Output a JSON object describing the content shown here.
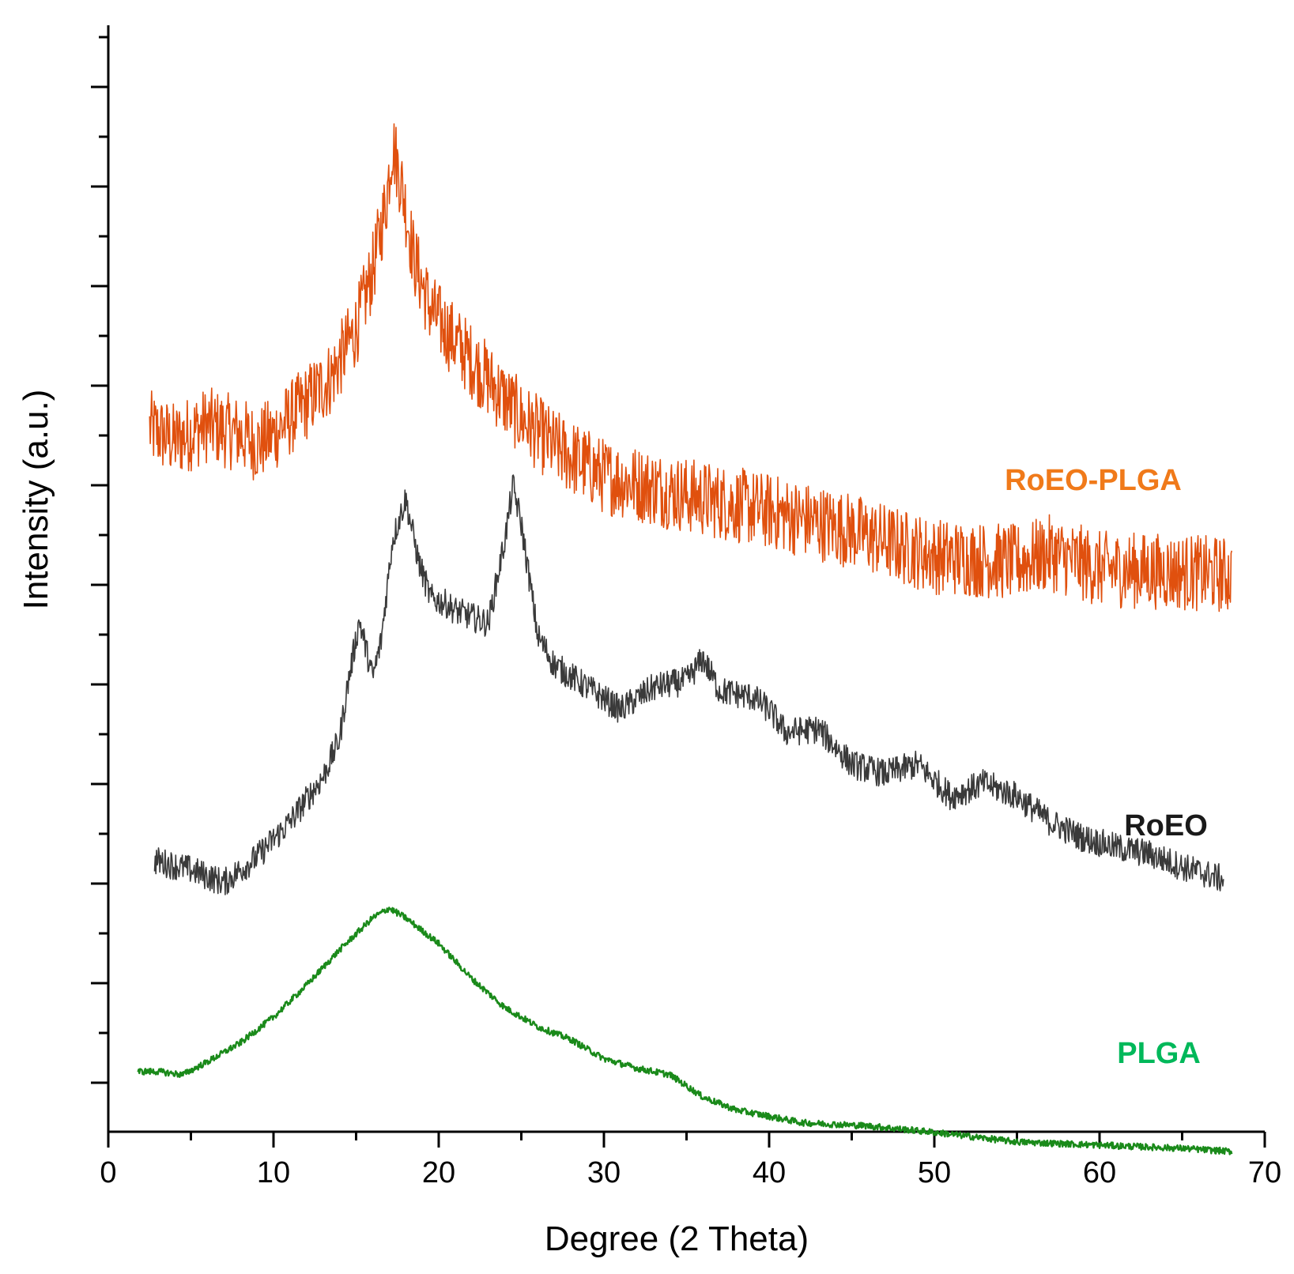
{
  "chart_data": {
    "type": "line",
    "xlabel": "Degree (2 Theta)",
    "ylabel": "Intensity (a.u.)",
    "xlim": [
      0,
      70
    ],
    "xticks": [
      0,
      10,
      20,
      30,
      40,
      50,
      60,
      70
    ],
    "yticks_labeled": false,
    "grid": false,
    "legend": "inline labels at right",
    "series": [
      {
        "name": "RoEO-PLGA",
        "color": "#e0500e",
        "label_color": "#f07a1a",
        "noise": 1.2,
        "points": [
          [
            2.5,
            6.5
          ],
          [
            4,
            6.1
          ],
          [
            6,
            6.6
          ],
          [
            8,
            6.3
          ],
          [
            9,
            6.0
          ],
          [
            10,
            6.3
          ],
          [
            12,
            7.3
          ],
          [
            13.5,
            8.1
          ],
          [
            15,
            9.6
          ],
          [
            16,
            11.4
          ],
          [
            16.8,
            13.5
          ],
          [
            17.2,
            15.4
          ],
          [
            17.8,
            14.0
          ],
          [
            18.5,
            11.8
          ],
          [
            19.5,
            10.2
          ],
          [
            21,
            9.2
          ],
          [
            23,
            8.0
          ],
          [
            25,
            6.8
          ],
          [
            27,
            5.9
          ],
          [
            30,
            5.0
          ],
          [
            35,
            4.4
          ],
          [
            40,
            3.9
          ],
          [
            45,
            3.3
          ],
          [
            48,
            2.8
          ],
          [
            50,
            2.5
          ],
          [
            55,
            2.3
          ],
          [
            57,
            2.6
          ],
          [
            60,
            2.1
          ],
          [
            65,
            2.0
          ],
          [
            68,
            1.9
          ]
        ]
      },
      {
        "name": "RoEO",
        "color": "#3a3a3a",
        "label_color": "#1a1a1a",
        "noise": 0.45,
        "points": [
          [
            2.8,
            -7.0
          ],
          [
            5,
            -7.3
          ],
          [
            7,
            -7.7
          ],
          [
            9,
            -6.9
          ],
          [
            11,
            -5.8
          ],
          [
            13,
            -4.4
          ],
          [
            14,
            -3.2
          ],
          [
            14.5,
            -1.5
          ],
          [
            15.2,
            0.5
          ],
          [
            16,
            -1.3
          ],
          [
            16.5,
            -0.2
          ],
          [
            17.2,
            3.0
          ],
          [
            18,
            4.3
          ],
          [
            18.8,
            2.3
          ],
          [
            19.5,
            1.2
          ],
          [
            20.5,
            1.0
          ],
          [
            21,
            0.8
          ],
          [
            22,
            0.6
          ],
          [
            23,
            0.4
          ],
          [
            24,
            3.0
          ],
          [
            24.5,
            4.7
          ],
          [
            25,
            3.5
          ],
          [
            26,
            0.0
          ],
          [
            27,
            -0.9
          ],
          [
            29,
            -1.6
          ],
          [
            31,
            -2.3
          ],
          [
            33,
            -1.6
          ],
          [
            35,
            -1.4
          ],
          [
            36,
            -0.7
          ],
          [
            37,
            -1.7
          ],
          [
            39,
            -1.9
          ],
          [
            40,
            -2.3
          ],
          [
            41,
            -3.0
          ],
          [
            43,
            -2.9
          ],
          [
            45,
            -4.0
          ],
          [
            47,
            -4.3
          ],
          [
            49,
            -4.0
          ],
          [
            51,
            -5.0
          ],
          [
            53,
            -4.6
          ],
          [
            55,
            -5.0
          ],
          [
            57,
            -5.8
          ],
          [
            59,
            -6.3
          ],
          [
            61,
            -6.6
          ],
          [
            63,
            -6.8
          ],
          [
            65,
            -7.2
          ],
          [
            67.5,
            -7.6
          ]
        ]
      },
      {
        "name": "PLGA",
        "color": "#1a8a1a",
        "label_color": "#00b85a",
        "noise": 0.1,
        "points": [
          [
            1.8,
            -13.6
          ],
          [
            3,
            -13.6
          ],
          [
            4.5,
            -13.7
          ],
          [
            6,
            -13.3
          ],
          [
            8,
            -12.7
          ],
          [
            10,
            -11.9
          ],
          [
            12,
            -10.9
          ],
          [
            14,
            -9.8
          ],
          [
            16,
            -8.8
          ],
          [
            17,
            -8.5
          ],
          [
            18,
            -8.8
          ],
          [
            20,
            -9.6
          ],
          [
            22,
            -10.7
          ],
          [
            24,
            -11.6
          ],
          [
            26,
            -12.2
          ],
          [
            28,
            -12.6
          ],
          [
            30,
            -13.2
          ],
          [
            32,
            -13.5
          ],
          [
            34,
            -13.7
          ],
          [
            36,
            -14.4
          ],
          [
            38,
            -14.8
          ],
          [
            40,
            -15.0
          ],
          [
            42,
            -15.2
          ],
          [
            46,
            -15.3
          ],
          [
            50,
            -15.5
          ],
          [
            55,
            -15.8
          ],
          [
            60,
            -15.9
          ],
          [
            65,
            -16.0
          ],
          [
            68,
            -16.1
          ]
        ]
      }
    ]
  }
}
